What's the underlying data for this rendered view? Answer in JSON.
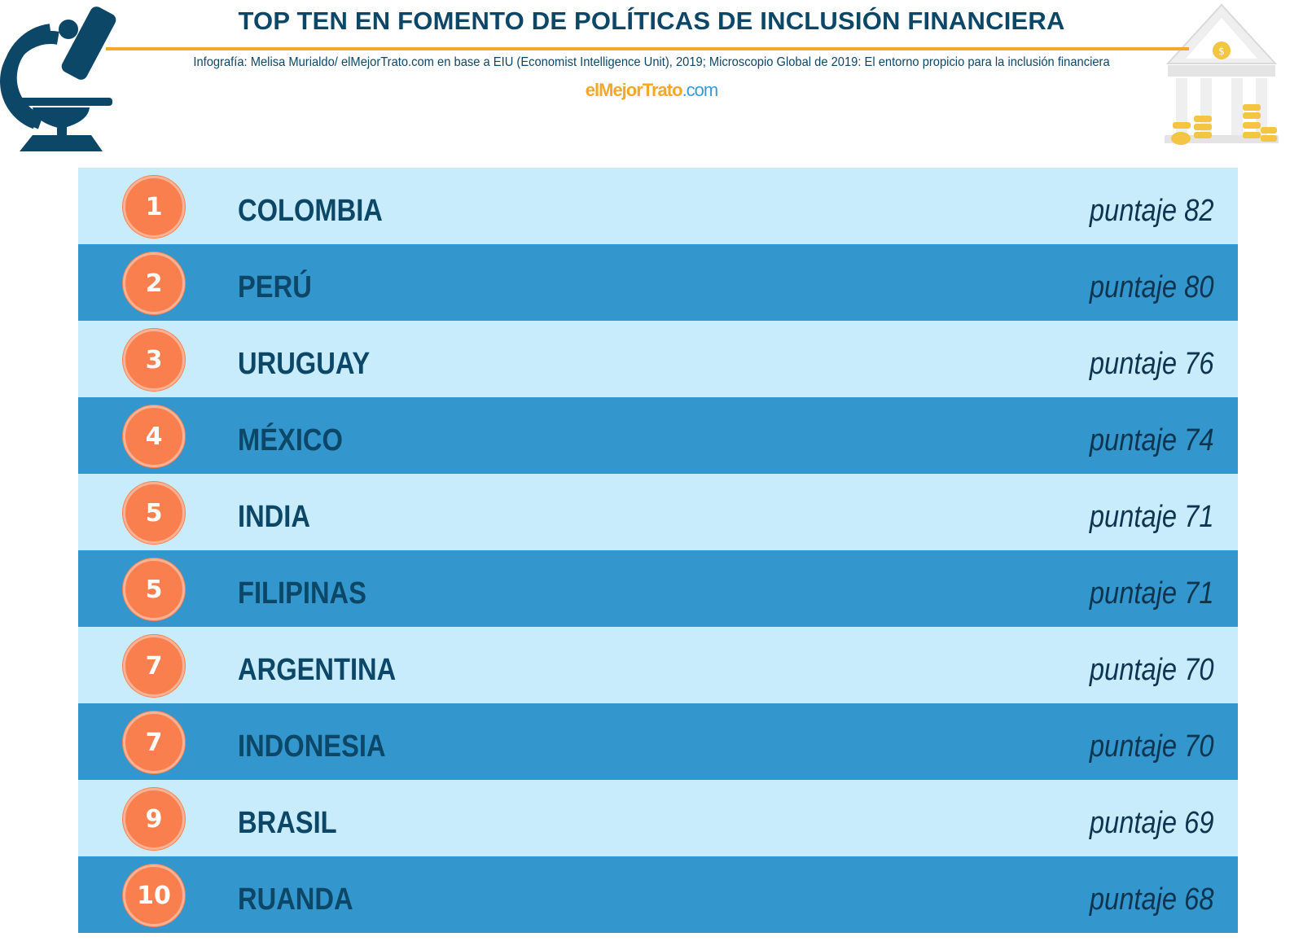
{
  "header": {
    "title": "TOP TEN EN FOMENTO DE POLÍTICAS DE INCLUSIÓN FINANCIERA",
    "source": "Infografía: Melisa Murialdo/ elMejorTrato.com en base a EIU (Economist Intelligence Unit), 2019; Microscopio Global de 2019: El entorno  propicio para la inclusión financiera",
    "brand_part1": "elMejor",
    "brand_part2": "Trato",
    "brand_part3": ".com"
  },
  "icons": {
    "left": "microscope-icon",
    "right": "bank-icon"
  },
  "colors": {
    "title": "#0d4768",
    "accent": "#f4a72a",
    "row_light": "#c8ecfc",
    "row_dark": "#3396cc",
    "badge": "#f9804e"
  },
  "ranking": [
    {
      "rank": "1",
      "country": "COLOMBIA",
      "score": "puntaje 82"
    },
    {
      "rank": "2",
      "country": "PERÚ",
      "score": "puntaje 80"
    },
    {
      "rank": "3",
      "country": "URUGUAY",
      "score": "puntaje 76"
    },
    {
      "rank": "4",
      "country": "MÉXICO",
      "score": "puntaje 74"
    },
    {
      "rank": "5",
      "country": "INDIA",
      "score": "puntaje 71"
    },
    {
      "rank": "5",
      "country": "FILIPINAS",
      "score": "puntaje 71"
    },
    {
      "rank": "7",
      "country": "ARGENTINA",
      "score": "puntaje 70"
    },
    {
      "rank": "7",
      "country": "INDONESIA",
      "score": "puntaje 70"
    },
    {
      "rank": "9",
      "country": "BRASIL",
      "score": "puntaje 69"
    },
    {
      "rank": "10",
      "country": "RUANDA",
      "score": "puntaje 68"
    }
  ]
}
